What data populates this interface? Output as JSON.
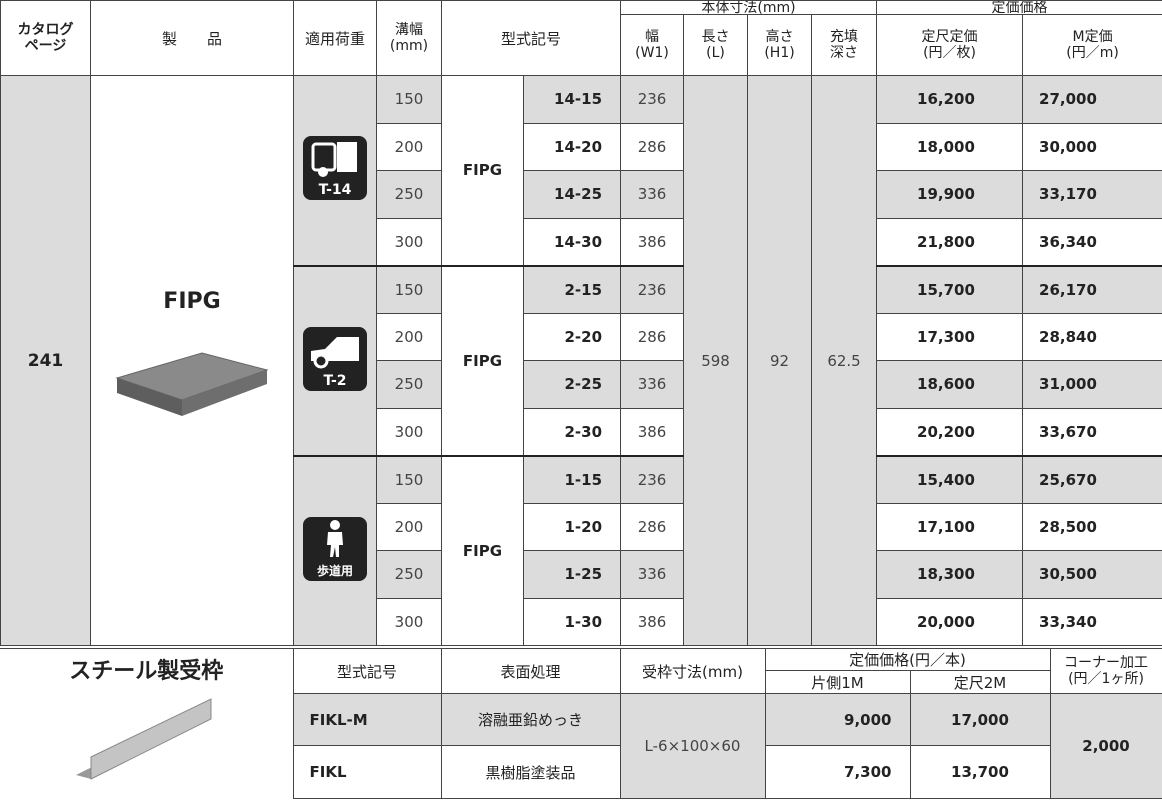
{
  "price_table": {
    "headers": {
      "catalog_page": [
        "カタログ",
        "ページ"
      ],
      "product": "製　　品",
      "load": "適用荷重",
      "width": [
        "溝幅",
        "(mm)"
      ],
      "model": "型式記号",
      "body_dims": "本体寸法(mm)",
      "w1": [
        "幅",
        "(W1)"
      ],
      "l": [
        "長さ",
        "(L)"
      ],
      "h1": [
        "高さ",
        "(H1)"
      ],
      "depth": [
        "充填",
        "深さ"
      ],
      "list_price": "定価価格",
      "unit_price": [
        "定尺定価",
        "(円／枚)"
      ],
      "m_price": [
        "M定価",
        "(円／m)"
      ]
    },
    "catalog_page": "241",
    "product": "FIPG",
    "l": "598",
    "h1": "92",
    "depth": "62.5",
    "groups": [
      {
        "icon_label": "T-14",
        "model": "FIPG",
        "rows": [
          [
            "150",
            "14-15",
            "236",
            "16,200",
            "27,000"
          ],
          [
            "200",
            "14-20",
            "286",
            "18,000",
            "30,000"
          ],
          [
            "250",
            "14-25",
            "336",
            "19,900",
            "33,170"
          ],
          [
            "300",
            "14-30",
            "386",
            "21,800",
            "36,340"
          ]
        ]
      },
      {
        "icon_label": "T-2",
        "model": "FIPG",
        "rows": [
          [
            "150",
            "2-15",
            "236",
            "15,700",
            "26,170"
          ],
          [
            "200",
            "2-20",
            "286",
            "17,300",
            "28,840"
          ],
          [
            "250",
            "2-25",
            "336",
            "18,600",
            "31,000"
          ],
          [
            "300",
            "2-30",
            "386",
            "20,200",
            "33,670"
          ]
        ]
      },
      {
        "icon_label": "歩道用",
        "model": "FIPG",
        "rows": [
          [
            "150",
            "1-15",
            "236",
            "15,400",
            "25,670"
          ],
          [
            "200",
            "1-20",
            "286",
            "17,100",
            "28,500"
          ],
          [
            "250",
            "1-25",
            "336",
            "18,300",
            "30,500"
          ],
          [
            "300",
            "1-30",
            "386",
            "20,000",
            "33,340"
          ]
        ]
      }
    ]
  },
  "frame_table": {
    "title": "スチール製受枠",
    "headers": {
      "model": "型式記号",
      "finish": "表面処理",
      "size": "受枠寸法(mm)",
      "list_price": "定価価格(円／本)",
      "one_side": "片側1M",
      "standard": "定尺2M",
      "corner": [
        "コーナー加工",
        "(円／1ヶ所)"
      ]
    },
    "size": "L-6×100×60",
    "corner_price": "2,000",
    "rows": [
      [
        "FIKL-M",
        "溶融亜鉛めっき",
        "9,000",
        "17,000"
      ],
      [
        "FIKL",
        "黒樹脂塗装品",
        "7,300",
        "13,700"
      ]
    ]
  }
}
